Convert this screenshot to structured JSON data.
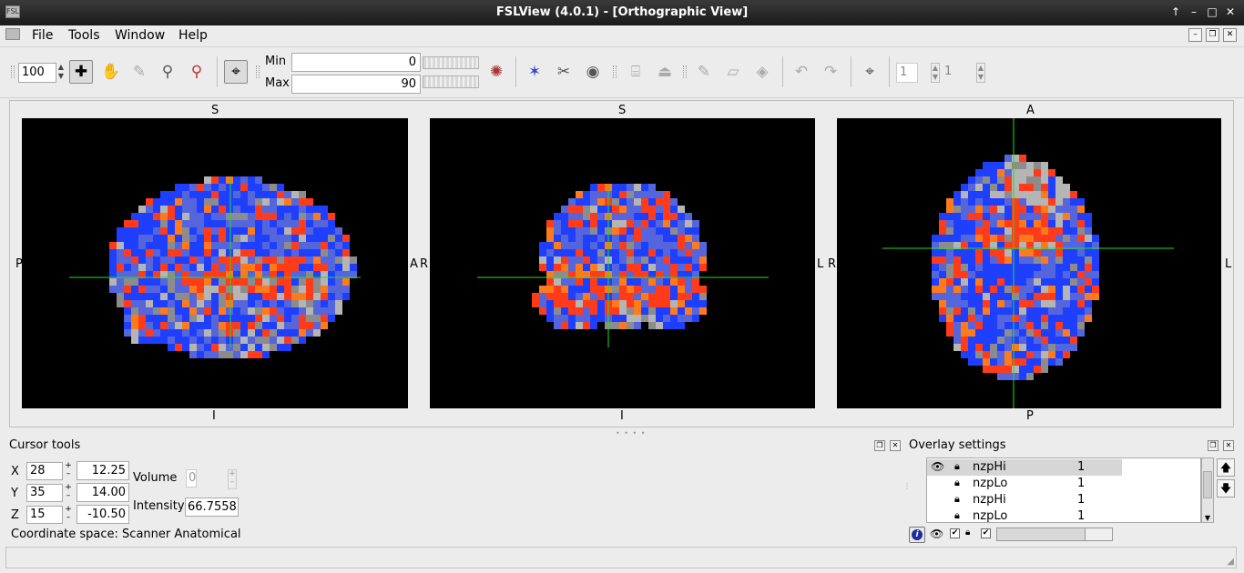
{
  "window": {
    "title": "FSLView (4.0.1) - [Orthographic View]",
    "controls": [
      "↑",
      "–",
      "□",
      "✕"
    ]
  },
  "menu": {
    "items": [
      "File",
      "Tools",
      "Window",
      "Help"
    ],
    "mdi_controls": [
      "–",
      "❐",
      "✕"
    ]
  },
  "toolbar": {
    "zoom": "100",
    "min_label": "Min",
    "max_label": "Max",
    "min_value": "0",
    "max_value": "90",
    "volume_spin_a": "1",
    "volume_spin_b": "1",
    "icons": [
      "cursor-mode-icon",
      "pan-hand-icon",
      "pencil-icon",
      "zoom-magnifier-icon",
      "zoom-reset-icon",
      "crosshair-target-icon",
      "lookup-table-icon",
      "landmark-tool-icon",
      "cut-tool-icon",
      "binoculars-icon",
      "mask-icon",
      "region-icon",
      "pen-icon",
      "eraser-icon",
      "fill-icon",
      "undo-icon",
      "redo-icon",
      "goto-cursor-icon"
    ]
  },
  "views": {
    "sagittal": {
      "top": "S",
      "bottom": "I",
      "left": "P",
      "right": "A"
    },
    "coronal": {
      "top": "S",
      "bottom": "I",
      "left": "R",
      "right": "L"
    },
    "axial": {
      "top": "A",
      "bottom": "P",
      "left": "R",
      "right": "L"
    }
  },
  "cursor_tools": {
    "title": "Cursor tools",
    "rows": [
      {
        "axis": "X",
        "voxel": "28",
        "coord": "12.25"
      },
      {
        "axis": "Y",
        "voxel": "35",
        "coord": "14.00"
      },
      {
        "axis": "Z",
        "voxel": "15",
        "coord": "-10.50"
      }
    ],
    "volume_label": "Volume",
    "volume_value": "0",
    "intensity_label": "Intensity",
    "intensity_value": "66.7558",
    "coordinate_space": "Coordinate space: Scanner Anatomical"
  },
  "overlay_settings": {
    "title": "Overlay settings",
    "layers": [
      {
        "name": "nzpHi",
        "value": "1",
        "visible": true,
        "selected": true
      },
      {
        "name": "nzpLo",
        "value": "1",
        "visible": false,
        "selected": false
      },
      {
        "name": "nzpHi",
        "value": "1",
        "visible": false,
        "selected": false
      },
      {
        "name": "nzpLo",
        "value": "1",
        "visible": false,
        "selected": false
      }
    ]
  },
  "colors": {
    "crosshair": "#22dd22",
    "overlay_hot": "#ff3b1a",
    "overlay_cold": "#1f3fff",
    "anatomy_gray": "#9a9a9a"
  }
}
